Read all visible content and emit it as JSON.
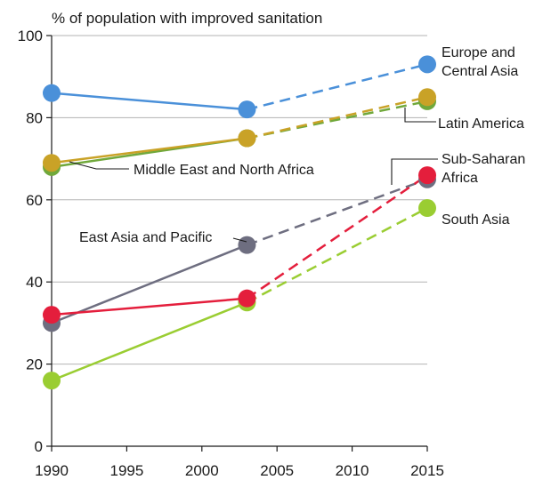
{
  "chart_data": {
    "type": "line",
    "title": "% of population with improved sanitation",
    "xlabel": "",
    "ylabel": "",
    "xlim": [
      1990,
      2015
    ],
    "ylim": [
      0,
      100
    ],
    "x_ticks": [
      1990,
      1995,
      2000,
      2005,
      2010,
      2015
    ],
    "y_ticks": [
      0,
      20,
      40,
      60,
      80,
      100
    ],
    "grid": "horizontal",
    "legend": "direct labels",
    "note": "Solid lines: 1990–2003; dashed lines: 2003–2015",
    "series": [
      {
        "id": "latin",
        "label_lines": [
          "Latin America"
        ],
        "color": "#70a83b",
        "points": [
          {
            "x": 1990,
            "y": 68
          },
          {
            "x": 2003,
            "y": 75
          },
          {
            "x": 2015,
            "y": 84
          }
        ]
      },
      {
        "id": "mena",
        "label_lines": [
          "Middle East and North Africa"
        ],
        "color": "#c9a227",
        "points": [
          {
            "x": 1990,
            "y": 69
          },
          {
            "x": 2003,
            "y": 75
          },
          {
            "x": 2015,
            "y": 85
          }
        ]
      },
      {
        "id": "eca",
        "label_lines": [
          "Europe and",
          "Central Asia"
        ],
        "color": "#4a90d9",
        "points": [
          {
            "x": 1990,
            "y": 86
          },
          {
            "x": 2003,
            "y": 82
          },
          {
            "x": 2015,
            "y": 93
          }
        ]
      },
      {
        "id": "eap",
        "label_lines": [
          "East Asia and Pacific"
        ],
        "color": "#6e6e80",
        "points": [
          {
            "x": 1990,
            "y": 30
          },
          {
            "x": 2003,
            "y": 49
          },
          {
            "x": 2015,
            "y": 65
          }
        ]
      },
      {
        "id": "sa",
        "label_lines": [
          "South Asia"
        ],
        "color": "#9acd32",
        "points": [
          {
            "x": 1990,
            "y": 16
          },
          {
            "x": 2003,
            "y": 35
          },
          {
            "x": 2015,
            "y": 58
          }
        ]
      },
      {
        "id": "ssa",
        "label_lines": [
          "Sub-Saharan",
          "Africa"
        ],
        "color": "#e41e3c",
        "points": [
          {
            "x": 1990,
            "y": 32
          },
          {
            "x": 2003,
            "y": 36
          },
          {
            "x": 2015,
            "y": 66
          }
        ]
      }
    ]
  }
}
